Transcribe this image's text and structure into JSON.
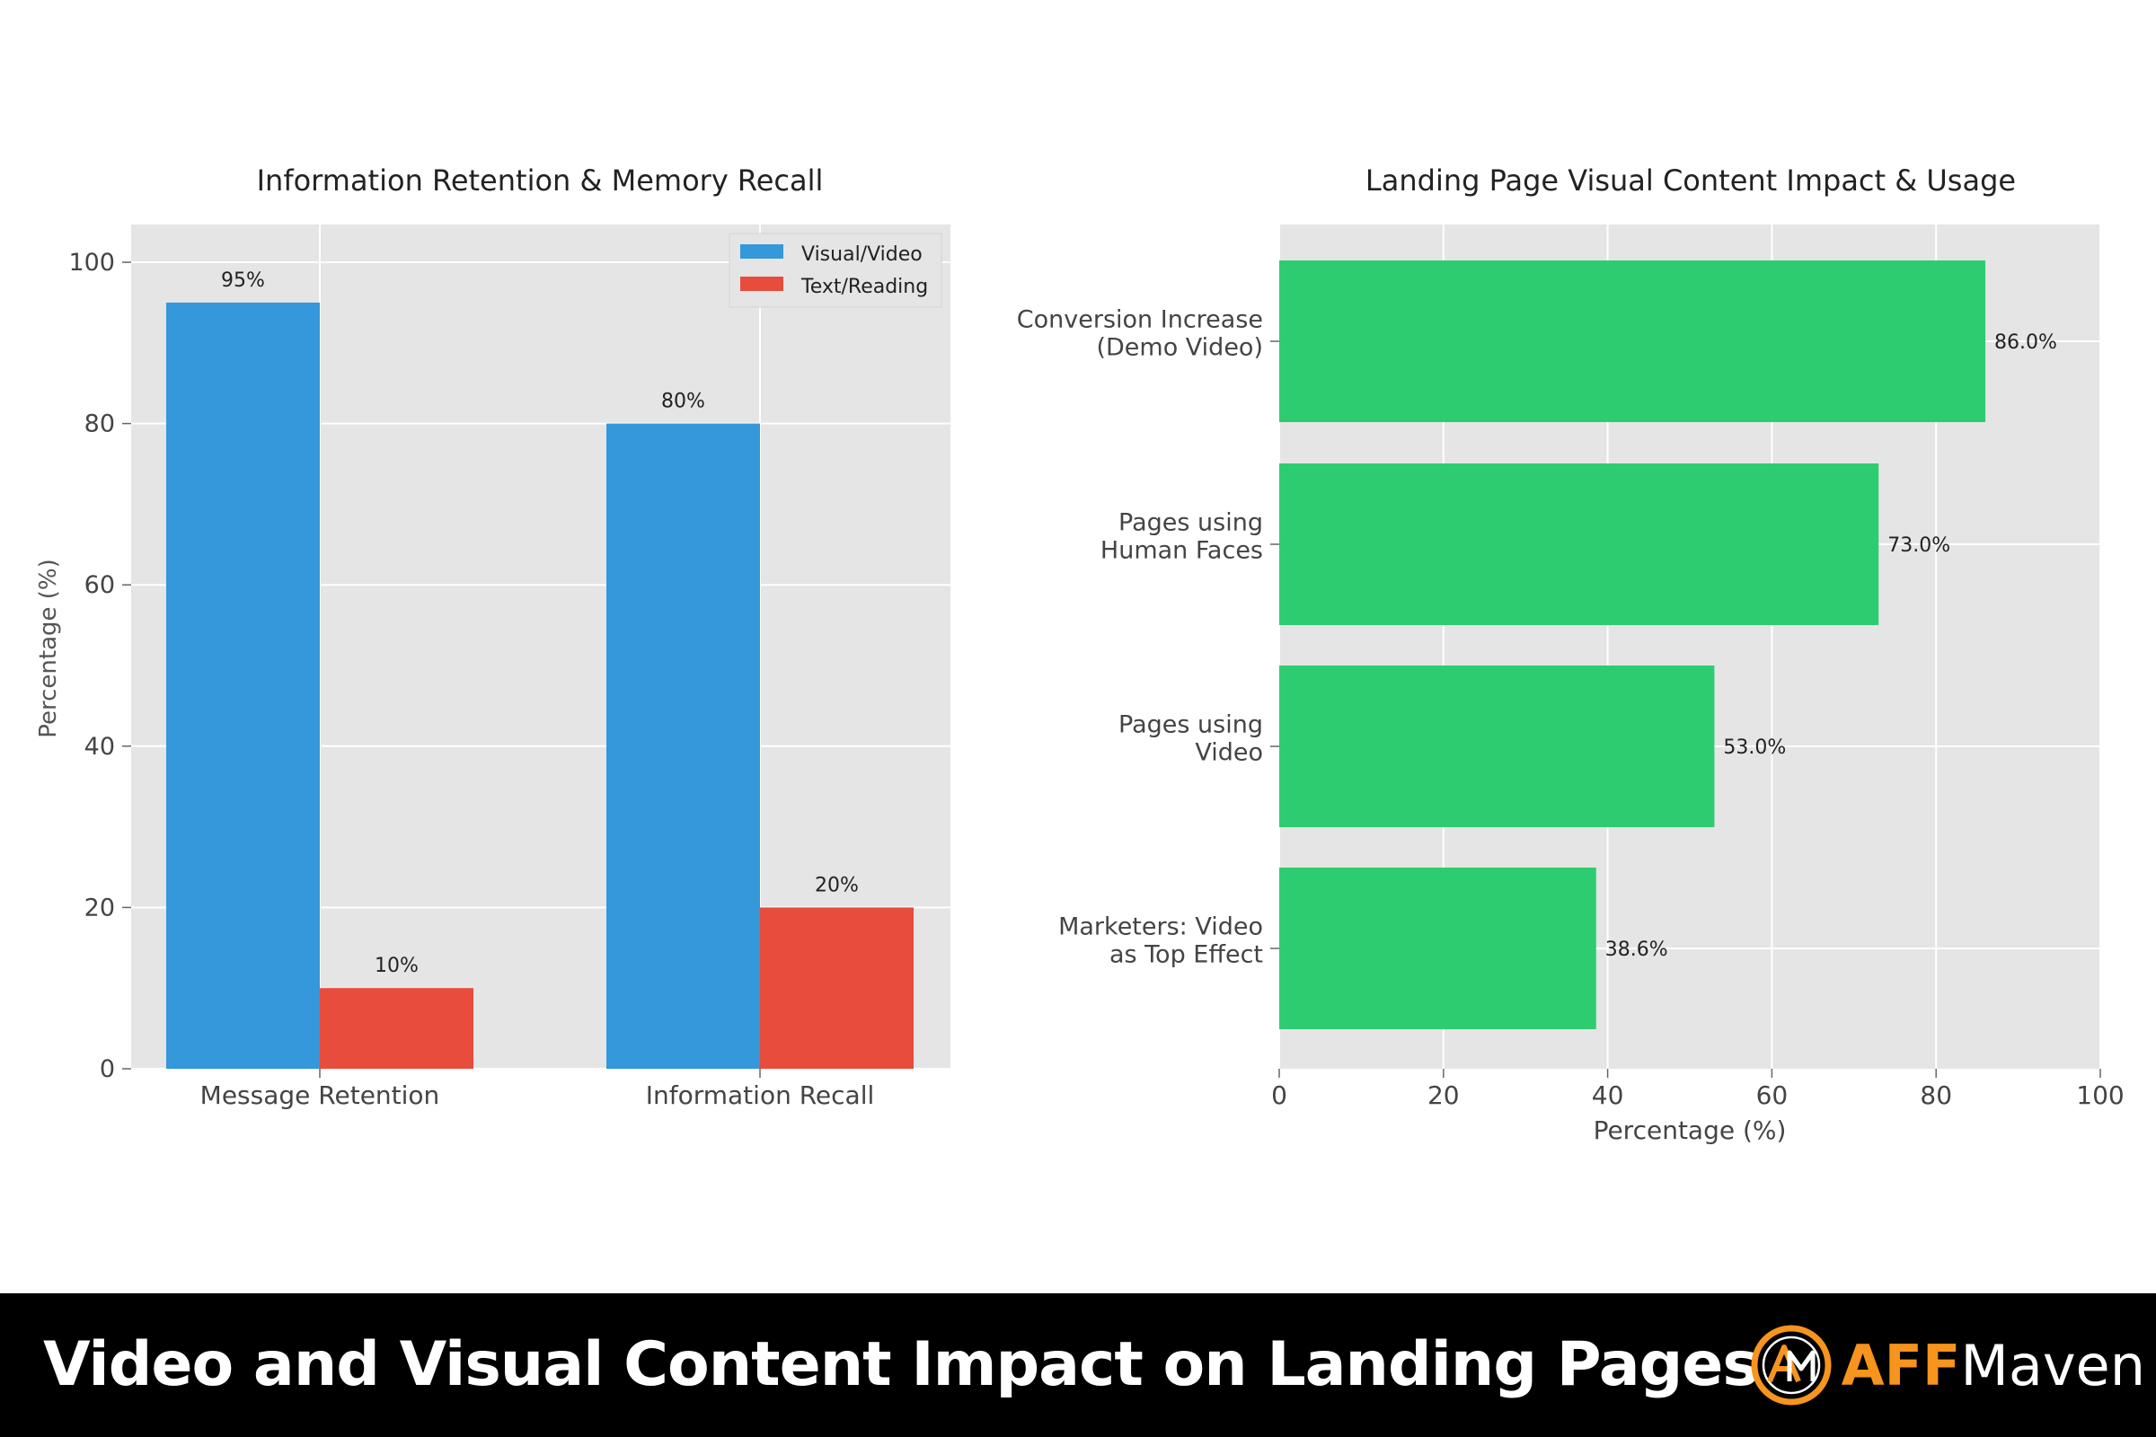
{
  "chart_data": [
    {
      "type": "bar",
      "title": "Information Retention & Memory Recall",
      "xlabel": "",
      "ylabel": "Percentage (%)",
      "categories": [
        "Message Retention",
        "Information Recall"
      ],
      "series": [
        {
          "name": "Visual/Video",
          "values": [
            95,
            80
          ],
          "labels": [
            "95%",
            "80%"
          ],
          "color": "#3498db"
        },
        {
          "name": "Text/Reading",
          "values": [
            10,
            20
          ],
          "labels": [
            "10%",
            "20%"
          ],
          "color": "#e74c3c"
        }
      ],
      "ylim": [
        0,
        105
      ],
      "yticks": [
        0,
        20,
        40,
        60,
        80,
        100
      ],
      "grid": true,
      "legend": "top-right"
    },
    {
      "type": "bar",
      "orientation": "horizontal",
      "title": "Landing Page Visual Content Impact & Usage",
      "xlabel": "Percentage (%)",
      "ylabel": "",
      "categories": [
        [
          "Conversion Increase",
          "(Demo Video)"
        ],
        [
          "Pages using",
          "Human Faces"
        ],
        [
          "Pages using",
          "Video"
        ],
        [
          "Marketers: Video",
          "as Top Effect"
        ]
      ],
      "values": [
        86.0,
        73.0,
        53.0,
        38.6
      ],
      "labels": [
        "86.0%",
        "73.0%",
        "53.0%",
        "38.6%"
      ],
      "xlim": [
        0,
        100
      ],
      "xticks": [
        0,
        20,
        40,
        60,
        80,
        100
      ],
      "color": "#2ecc71",
      "grid": true
    }
  ],
  "banner": {
    "title": "Video and Visual Content Impact on Landing Pages",
    "brand_accent": "AFF",
    "brand_rest": "Maven",
    "brand_icon": "am-monogram-logo",
    "brand_color": "#f7941d"
  }
}
